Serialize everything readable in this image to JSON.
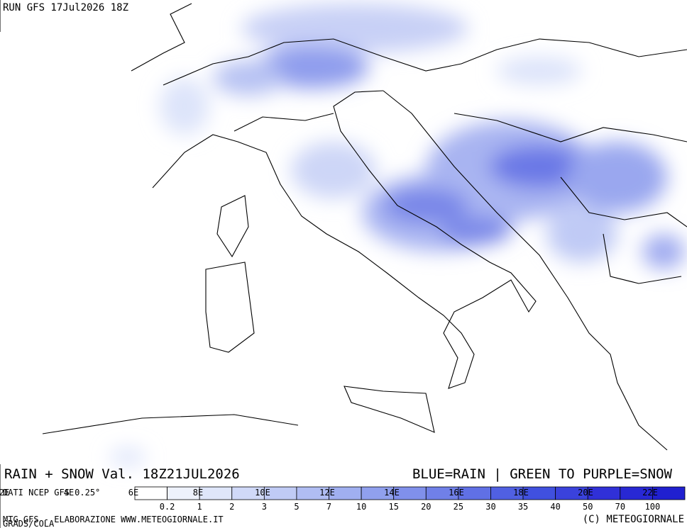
{
  "header": {
    "run": "RUN GFS 17Jul2026 18Z"
  },
  "footer": {
    "title": "RAIN + SNOW Val. 18Z21JUL2026",
    "legend_note": "BLUE=RAIN | GREEN TO PURPLE=SNOW",
    "source": "DATI NCEP GFS 0.25°",
    "credits": "MTG GFS - ELABORAZIONE WWW.METEOGIORNALE.IT",
    "copyright": "(C) METEOGIORNALE",
    "software": "GRADS/COLA"
  },
  "longitudes": [
    "2E",
    "4E",
    "6E",
    "8E",
    "10E",
    "12E",
    "14E",
    "16E",
    "18E",
    "20E",
    "22E"
  ],
  "colorbar": {
    "thresholds": [
      "0.2",
      "1",
      "2",
      "3",
      "5",
      "7",
      "10",
      "15",
      "20",
      "25",
      "30",
      "35",
      "40",
      "50",
      "70",
      "100"
    ],
    "colors": [
      "#ffffff",
      "#eef2fc",
      "#dfe6fa",
      "#d0d9f8",
      "#c0cbf5",
      "#b0bdf3",
      "#a0aff0",
      "#90a0ee",
      "#8090eb",
      "#7080e8",
      "#6070e5",
      "#5060e2",
      "#4050df",
      "#3a42dc",
      "#3030d8",
      "#2828d4",
      "#2020d0"
    ]
  }
}
